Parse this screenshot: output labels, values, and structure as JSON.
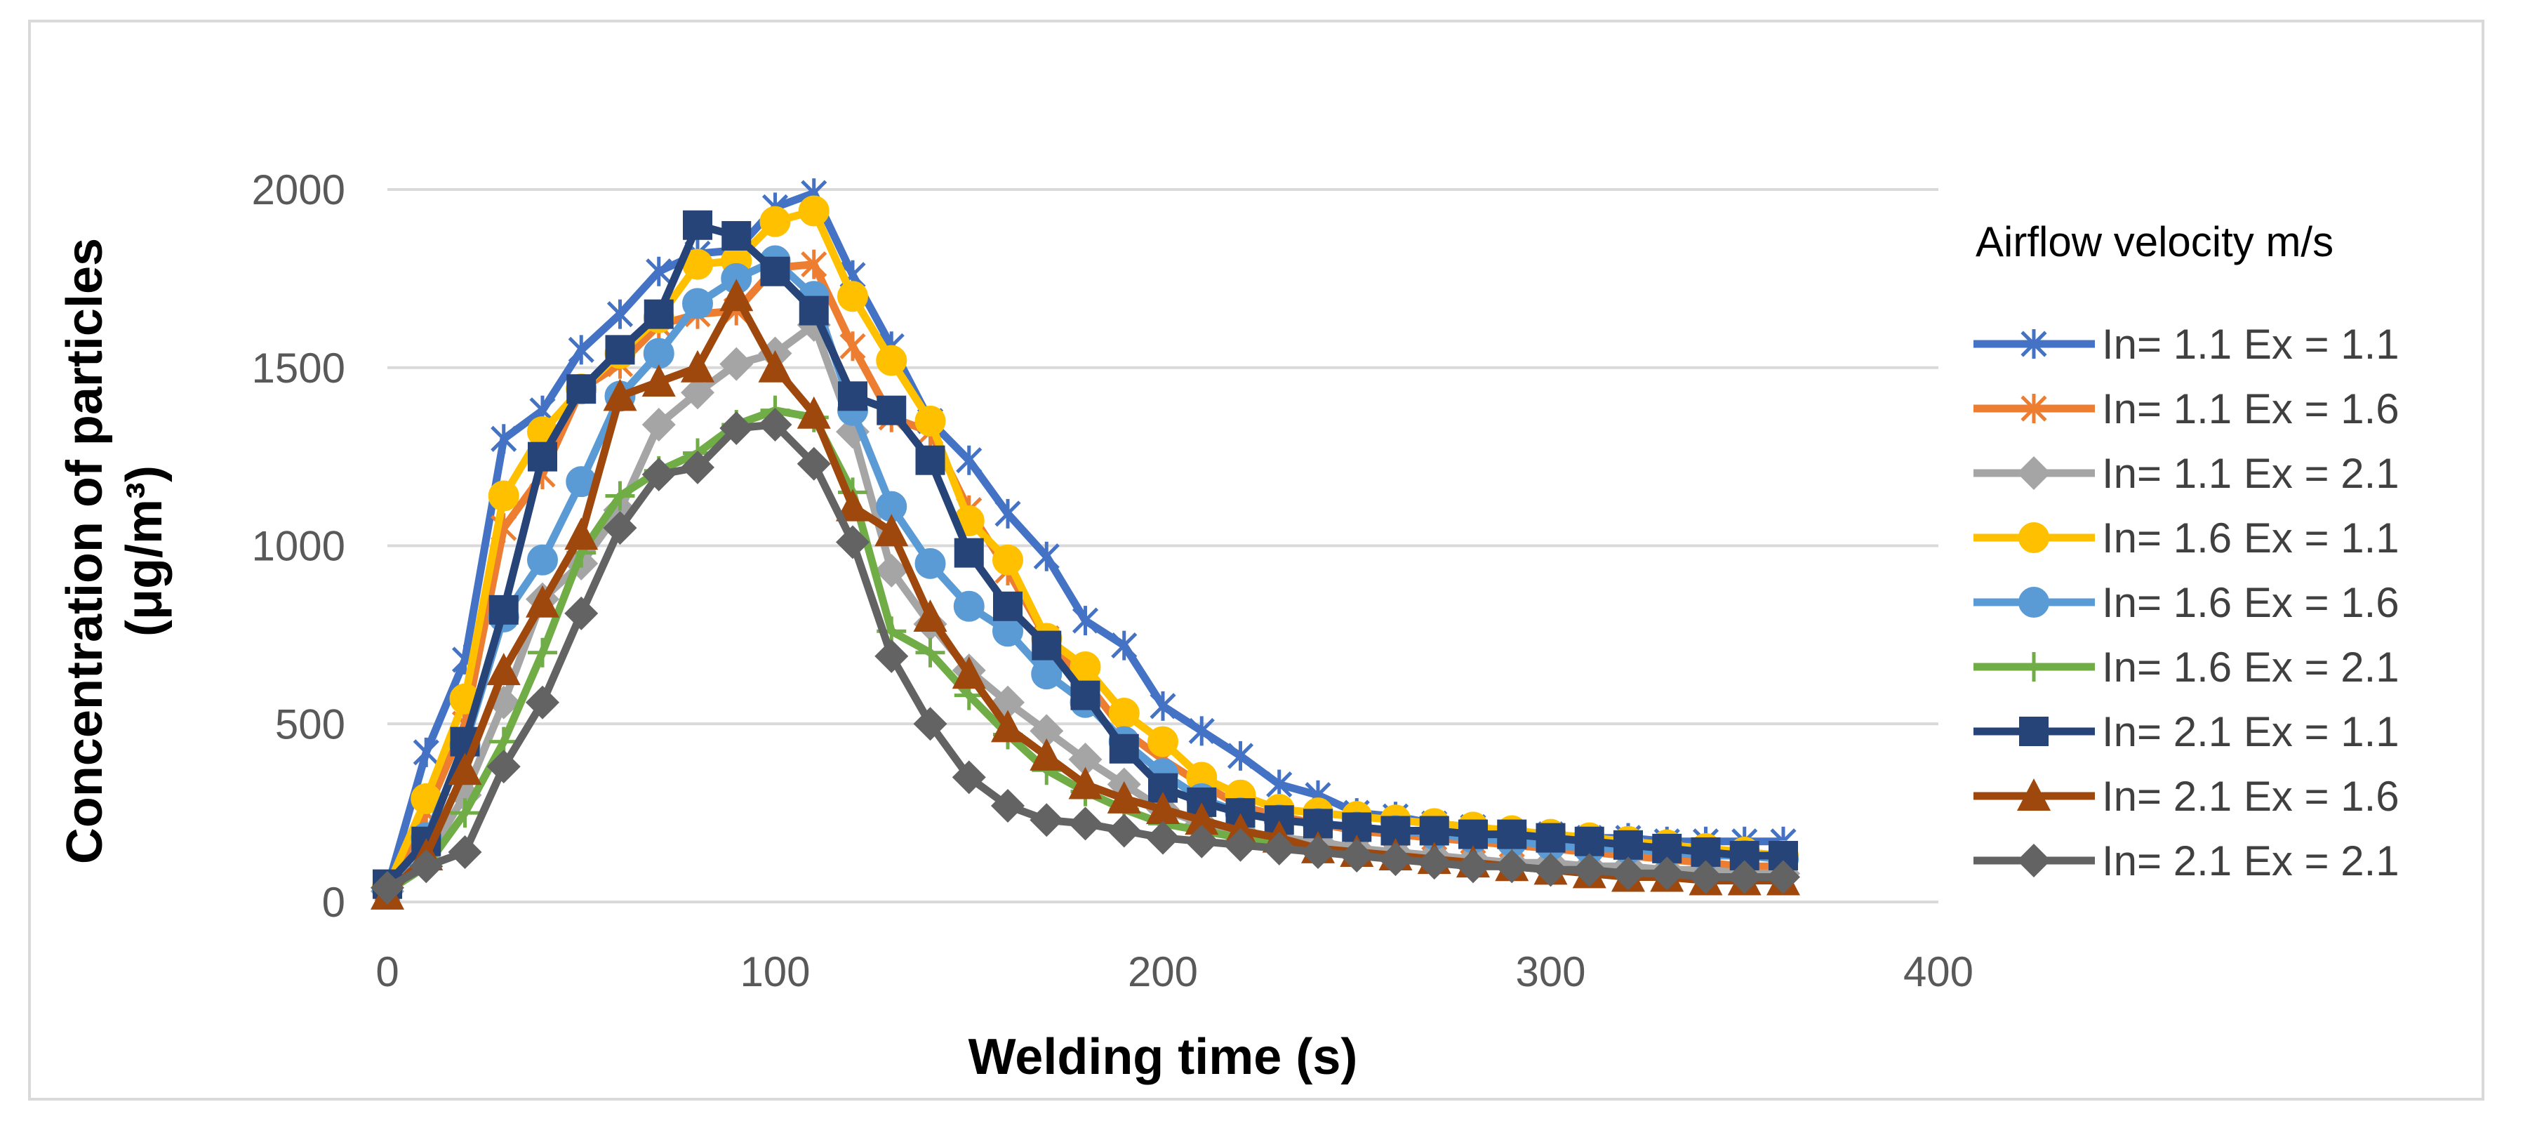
{
  "chart_data": {
    "type": "line",
    "title": "",
    "xlabel": "Welding time (s)",
    "ylabel_line1": "Concentration of particles",
    "ylabel_line2": "(μg/m³)",
    "xlim": [
      0,
      400
    ],
    "ylim": [
      0,
      2000
    ],
    "xticks": [
      0,
      100,
      200,
      300,
      400
    ],
    "yticks": [
      0,
      500,
      1000,
      1500,
      2000
    ],
    "grid": true,
    "legend_title": "Airflow velocity m/s",
    "legend_position": "right",
    "x": [
      0,
      10,
      20,
      30,
      40,
      50,
      60,
      70,
      80,
      90,
      100,
      110,
      120,
      130,
      140,
      150,
      160,
      170,
      180,
      190,
      200,
      210,
      220,
      230,
      240,
      250,
      260,
      270,
      280,
      290,
      300,
      310,
      320,
      330,
      340,
      350,
      360
    ],
    "series": [
      {
        "name": "In= 1.1 Ex = 1.1",
        "color": "#4472C4",
        "marker": "asterisk",
        "values": [
          40,
          420,
          680,
          1300,
          1380,
          1550,
          1650,
          1770,
          1820,
          1830,
          1950,
          1990,
          1760,
          1560,
          1350,
          1240,
          1090,
          970,
          790,
          720,
          550,
          480,
          410,
          330,
          300,
          250,
          240,
          220,
          210,
          190,
          190,
          180,
          180,
          170,
          170,
          170,
          170
        ]
      },
      {
        "name": "In= 1.1 Ex = 1.6",
        "color": "#ED7D31",
        "marker": "asterisk",
        "values": [
          35,
          250,
          500,
          1050,
          1200,
          1440,
          1510,
          1620,
          1650,
          1660,
          1780,
          1790,
          1560,
          1360,
          1320,
          1100,
          930,
          740,
          620,
          480,
          400,
          330,
          270,
          240,
          220,
          200,
          190,
          180,
          170,
          160,
          150,
          140,
          130,
          120,
          110,
          100,
          100
        ]
      },
      {
        "name": "In= 1.1 Ex = 2.1",
        "color": "#A5A5A5",
        "marker": "diamond",
        "values": [
          30,
          120,
          300,
          560,
          850,
          950,
          1100,
          1340,
          1430,
          1510,
          1540,
          1620,
          1320,
          930,
          780,
          650,
          560,
          480,
          400,
          330,
          260,
          220,
          200,
          180,
          170,
          150,
          140,
          130,
          120,
          110,
          110,
          100,
          100,
          90,
          90,
          80,
          80
        ]
      },
      {
        "name": "In= 1.6 Ex = 1.1",
        "color": "#FFC000",
        "marker": "circle",
        "values": [
          40,
          290,
          570,
          1140,
          1320,
          1440,
          1540,
          1640,
          1790,
          1800,
          1910,
          1940,
          1700,
          1520,
          1350,
          1070,
          960,
          740,
          660,
          530,
          450,
          350,
          300,
          260,
          250,
          240,
          230,
          220,
          210,
          200,
          190,
          180,
          170,
          160,
          150,
          140,
          130
        ]
      },
      {
        "name": "In= 1.6 Ex = 1.6",
        "color": "#5B9BD5",
        "marker": "circle",
        "values": [
          35,
          180,
          440,
          800,
          960,
          1180,
          1420,
          1540,
          1680,
          1750,
          1800,
          1700,
          1380,
          1110,
          950,
          830,
          760,
          640,
          560,
          450,
          360,
          290,
          250,
          230,
          220,
          210,
          200,
          190,
          180,
          170,
          160,
          150,
          150,
          140,
          130,
          130,
          120
        ]
      },
      {
        "name": "In= 1.6 Ex = 2.1",
        "color": "#70AD47",
        "marker": "plus",
        "values": [
          30,
          100,
          250,
          450,
          700,
          980,
          1140,
          1210,
          1260,
          1340,
          1380,
          1360,
          1150,
          760,
          700,
          580,
          470,
          370,
          310,
          260,
          220,
          200,
          180,
          160,
          150,
          130,
          120,
          110,
          100,
          100,
          90,
          90,
          80,
          80,
          70,
          70,
          70
        ]
      },
      {
        "name": "In= 2.1 Ex = 1.1",
        "color": "#264478",
        "marker": "square",
        "values": [
          50,
          170,
          450,
          820,
          1250,
          1440,
          1550,
          1650,
          1900,
          1870,
          1770,
          1660,
          1420,
          1380,
          1240,
          980,
          830,
          720,
          580,
          430,
          320,
          280,
          250,
          230,
          220,
          210,
          200,
          200,
          190,
          190,
          180,
          170,
          160,
          150,
          140,
          130,
          130
        ]
      },
      {
        "name": "In= 2.1 Ex = 1.6",
        "color": "#9E480E",
        "marker": "triangle",
        "values": [
          20,
          130,
          370,
          650,
          840,
          1030,
          1420,
          1460,
          1500,
          1700,
          1500,
          1370,
          1110,
          1040,
          800,
          640,
          490,
          410,
          330,
          290,
          260,
          230,
          200,
          180,
          150,
          140,
          130,
          120,
          110,
          100,
          90,
          80,
          70,
          70,
          60,
          60,
          60
        ]
      },
      {
        "name": "In= 2.1 Ex = 2.1",
        "color": "#636363",
        "marker": "diamond",
        "values": [
          40,
          100,
          140,
          380,
          560,
          810,
          1050,
          1200,
          1220,
          1330,
          1340,
          1230,
          1010,
          690,
          500,
          350,
          270,
          230,
          220,
          200,
          180,
          170,
          160,
          150,
          140,
          130,
          120,
          110,
          100,
          100,
          90,
          90,
          80,
          80,
          70,
          70,
          70
        ]
      }
    ]
  }
}
